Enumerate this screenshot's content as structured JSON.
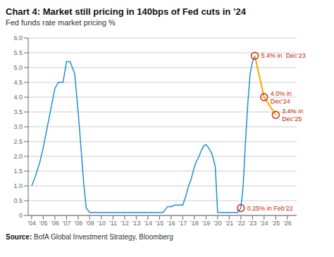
{
  "chart_data": {
    "type": "line",
    "title": "Chart 4: Market still pricing in 140bps of Fed cuts in ’24",
    "subtitle": "Fed funds rate market pricing %",
    "source": {
      "label": "Source:",
      "text": " BofA Global Investment Strategy, Bloomberg"
    },
    "series": [
      {
        "color": "#1b8fd2",
        "x": [
          2004,
          2004.3,
          2004.7,
          2005,
          2005.5,
          2006,
          2006.3,
          2006.7,
          2007,
          2007.3,
          2007.7,
          2008,
          2008.2,
          2008.5,
          2008.7,
          2009,
          2009.3,
          2009.7,
          2010,
          2011,
          2012,
          2013,
          2014,
          2015,
          2015.3,
          2015.7,
          2016,
          2016.3,
          2016.7,
          2017,
          2017.3,
          2017.5,
          2017.7,
          2018,
          2018.2,
          2018.4,
          2018.6,
          2018.8,
          2019,
          2019.2,
          2019.5,
          2019.8,
          2020,
          2020.3,
          2020.7,
          2021,
          2021.3,
          2021.7,
          2022,
          2022.2,
          2022.4,
          2022.6,
          2022.8,
          2023,
          2023.2
        ],
        "values": [
          1.0,
          1.3,
          1.8,
          2.3,
          3.3,
          4.3,
          4.5,
          4.5,
          5.2,
          5.2,
          4.8,
          3.5,
          2.5,
          1.0,
          0.25,
          0.1,
          0.1,
          0.1,
          0.1,
          0.1,
          0.1,
          0.1,
          0.1,
          0.1,
          0.1,
          0.3,
          0.3,
          0.35,
          0.35,
          0.35,
          0.7,
          1.0,
          1.2,
          1.65,
          1.85,
          2.0,
          2.2,
          2.35,
          2.4,
          2.3,
          2.1,
          1.65,
          0.1,
          0.1,
          0.1,
          0.1,
          0.1,
          0.1,
          0.25,
          1.0,
          2.5,
          3.8,
          4.8,
          5.2,
          5.4
        ]
      },
      {
        "color": "#FFA500",
        "x": [
          2023.2,
          2024,
          2025
        ],
        "values": [
          5.4,
          4.0,
          3.4
        ]
      }
    ],
    "annotations": [
      {
        "x": 2023.2,
        "y": 5.4,
        "text": "5.4% in  Dec’23",
        "color": "#cc2200",
        "marker": "circle"
      },
      {
        "x": 2024.0,
        "y": 4.0,
        "text": "4.0% in\nDec’24",
        "color": "#cc2200",
        "marker": "circle"
      },
      {
        "x": 2025.0,
        "y": 3.4,
        "text": "3.4% in\nDec’25",
        "color": "#cc2200",
        "marker": "circle"
      },
      {
        "x": 2022.0,
        "y": 0.25,
        "text": "0.25% in Feb’22",
        "color": "#cc2200",
        "marker": "circle"
      }
    ],
    "xlim": [
      2003.7,
      2026.8
    ],
    "xticks": [
      {
        "value": 2004,
        "label": "’04"
      },
      {
        "value": 2005,
        "label": "’05"
      },
      {
        "value": 2006,
        "label": "’06"
      },
      {
        "value": 2007,
        "label": "’07"
      },
      {
        "value": 2008,
        "label": "’08"
      },
      {
        "value": 2009,
        "label": "’09"
      },
      {
        "value": 2010,
        "label": "’10"
      },
      {
        "value": 2011,
        "label": "’11"
      },
      {
        "value": 2012,
        "label": "’12"
      },
      {
        "value": 2013,
        "label": "’13"
      },
      {
        "value": 2014,
        "label": "’14"
      },
      {
        "value": 2015,
        "label": "’15"
      },
      {
        "value": 2016,
        "label": "’16"
      },
      {
        "value": 2017,
        "label": "’17"
      },
      {
        "value": 2018,
        "label": "’18"
      },
      {
        "value": 2019,
        "label": "’19"
      },
      {
        "value": 2020,
        "label": "’20"
      },
      {
        "value": 2021,
        "label": "’21"
      },
      {
        "value": 2022,
        "label": "’22"
      },
      {
        "value": 2023,
        "label": "’23"
      },
      {
        "value": 2024,
        "label": "’24"
      },
      {
        "value": 2025,
        "label": "’25"
      },
      {
        "value": 2026,
        "label": "’26"
      }
    ],
    "ylim": [
      0,
      6.0
    ],
    "yticks": [
      0,
      0.5,
      {
        "value": 1,
        "label": "1.0"
      },
      1.5,
      {
        "value": 2,
        "label": "2.0"
      },
      2.5,
      {
        "value": 3,
        "label": "3.0"
      },
      3.5,
      {
        "value": 4,
        "label": "4.0"
      },
      4.5,
      {
        "value": 5,
        "label": "5.0"
      },
      5.5,
      {
        "value": 6,
        "label": "6.0"
      }
    ],
    "grid": "y"
  }
}
